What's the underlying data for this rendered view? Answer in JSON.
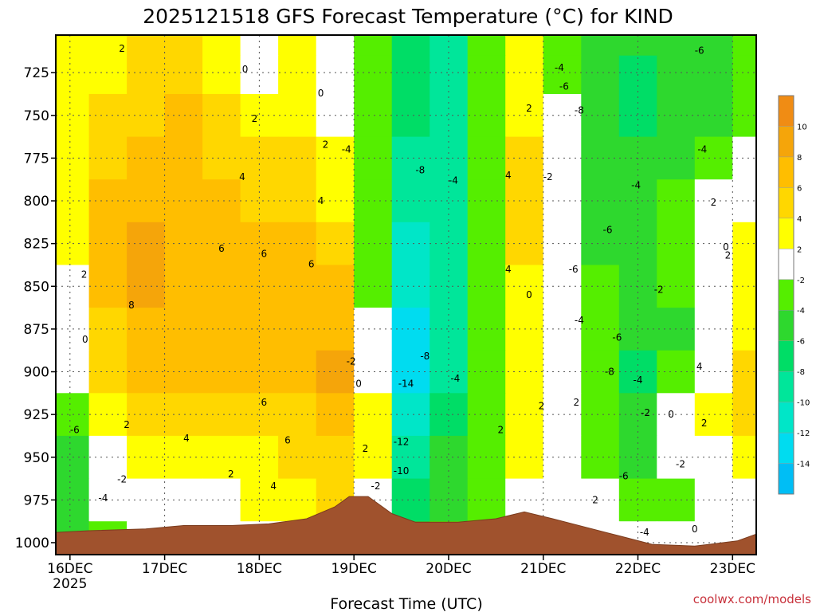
{
  "chart_data": {
    "type": "heatmap",
    "title": "2025121518 GFS Forecast Temperature (°C) for KIND",
    "xlabel": "Forecast Time (UTC)",
    "ylabel": "",
    "credit": "coolwx.com/models",
    "x_ticks": [
      {
        "label": "16DEC",
        "sublabel": "2025",
        "day": 1
      },
      {
        "label": "17DEC",
        "sublabel": "",
        "day": 2
      },
      {
        "label": "18DEC",
        "sublabel": "",
        "day": 3
      },
      {
        "label": "19DEC",
        "sublabel": "",
        "day": 4
      },
      {
        "label": "20DEC",
        "sublabel": "",
        "day": 5
      },
      {
        "label": "21DEC",
        "sublabel": "",
        "day": 6
      },
      {
        "label": "22DEC",
        "sublabel": "",
        "day": 7
      },
      {
        "label": "23DEC",
        "sublabel": "",
        "day": 8
      }
    ],
    "xlim_days": [
      0.85,
      8.25
    ],
    "y_ticks": [
      "725",
      "750",
      "775",
      "800",
      "825",
      "850",
      "875",
      "900",
      "925",
      "950",
      "975",
      "1000"
    ],
    "ylim_hpa": [
      703,
      1007
    ],
    "colorbar": {
      "labels": [
        "10",
        "8",
        "6",
        "4",
        "2",
        "-2",
        "-4",
        "-6",
        "-8",
        "-10",
        "-12",
        "-14"
      ],
      "bands": [
        {
          "min": 10,
          "max": 12,
          "color": "#f08c14"
        },
        {
          "min": 8,
          "max": 10,
          "color": "#f5a50a"
        },
        {
          "min": 6,
          "max": 8,
          "color": "#ffbe00"
        },
        {
          "min": 4,
          "max": 6,
          "color": "#ffd700"
        },
        {
          "min": 2,
          "max": 4,
          "color": "#ffff00"
        },
        {
          "min": -2,
          "max": 2,
          "color": "#ffffff"
        },
        {
          "min": -4,
          "max": -2,
          "color": "#55ee00"
        },
        {
          "min": -6,
          "max": -4,
          "color": "#2ed82e"
        },
        {
          "min": -8,
          "max": -6,
          "color": "#00dd66"
        },
        {
          "min": -10,
          "max": -8,
          "color": "#00e69a"
        },
        {
          "min": -12,
          "max": -10,
          "color": "#00e6c8"
        },
        {
          "min": -14,
          "max": -12,
          "color": "#00dcf0"
        },
        {
          "min": -16,
          "max": -14,
          "color": "#00bef5"
        }
      ]
    },
    "terrain_color": "#a0522d",
    "terrain_hpa": [
      [
        0.85,
        994
      ],
      [
        1.2,
        993
      ],
      [
        1.8,
        992
      ],
      [
        2.2,
        990
      ],
      [
        2.7,
        990
      ],
      [
        3.1,
        989
      ],
      [
        3.5,
        986
      ],
      [
        3.8,
        979
      ],
      [
        3.95,
        973
      ],
      [
        4.15,
        973
      ],
      [
        4.4,
        983
      ],
      [
        4.65,
        988
      ],
      [
        5.1,
        988
      ],
      [
        5.5,
        986
      ],
      [
        5.8,
        982
      ],
      [
        6.1,
        986
      ],
      [
        6.45,
        991
      ],
      [
        6.8,
        996
      ],
      [
        7.15,
        1001
      ],
      [
        7.6,
        1002
      ],
      [
        8.05,
        999
      ],
      [
        8.25,
        995
      ]
    ],
    "temperature_grid": {
      "days": [
        1.0,
        1.4,
        1.8,
        2.2,
        2.6,
        3.0,
        3.4,
        3.8,
        4.2,
        4.6,
        5.0,
        5.4,
        5.8,
        6.2,
        6.6,
        7.0,
        7.4,
        7.8,
        8.2
      ],
      "levels_hpa": [
        705,
        725,
        750,
        775,
        800,
        825,
        850,
        875,
        900,
        925,
        950,
        975,
        1000
      ],
      "values": [
        [
          2,
          3,
          4,
          4,
          2,
          0,
          2,
          0,
          -4,
          -8,
          -10,
          -4,
          2,
          -4,
          -6,
          -6,
          -6,
          -6,
          -4
        ],
        [
          2,
          3,
          5,
          5,
          3,
          1,
          2,
          0,
          -4,
          -8,
          -10,
          -4,
          2,
          -4,
          -6,
          -8,
          -6,
          -6,
          -4
        ],
        [
          3,
          4,
          5,
          6,
          4,
          2,
          3,
          1,
          -4,
          -8,
          -10,
          -4,
          3,
          -2,
          -6,
          -8,
          -6,
          -6,
          -4
        ],
        [
          3,
          5,
          6,
          7,
          5,
          4,
          4,
          2,
          -4,
          -9,
          -10,
          -4,
          4,
          -2,
          -6,
          -6,
          -6,
          -4,
          -2
        ],
        [
          3,
          6,
          7,
          7,
          6,
          5,
          5,
          3,
          -4,
          -10,
          -10,
          -4,
          4,
          -2,
          -6,
          -6,
          -4,
          0,
          1
        ],
        [
          2,
          7,
          8,
          7,
          6,
          6,
          6,
          5,
          -4,
          -11,
          -10,
          -4,
          4,
          0,
          -6,
          -6,
          -4,
          -2,
          2
        ],
        [
          1,
          6,
          8,
          7,
          7,
          6,
          6,
          6,
          -4,
          -12,
          -10,
          -4,
          3,
          0,
          -4,
          -6,
          -4,
          0,
          2
        ],
        [
          0,
          5,
          7,
          7,
          7,
          6,
          6,
          7,
          -2,
          -14,
          -10,
          -4,
          3,
          0,
          -4,
          -6,
          -6,
          1,
          3
        ],
        [
          -2,
          4,
          6,
          6,
          6,
          6,
          6,
          8,
          0,
          -14,
          -10,
          -4,
          2,
          0,
          -4,
          -8,
          -4,
          0,
          4
        ],
        [
          -4,
          2,
          4,
          5,
          5,
          5,
          5,
          6,
          2,
          -12,
          -8,
          -4,
          2,
          -2,
          -4,
          -6,
          -2,
          2,
          4
        ],
        [
          -6,
          0,
          2,
          3,
          3,
          3,
          4,
          5,
          2,
          -10,
          -6,
          -4,
          2,
          -2,
          -4,
          -6,
          -2,
          0,
          2
        ],
        [
          -6,
          -2,
          0,
          1,
          1,
          2,
          3,
          4,
          -2,
          -8,
          -6,
          -4,
          0,
          -2,
          -2,
          -4,
          -4,
          -2,
          0
        ],
        [
          -6,
          -4,
          -2,
          0,
          0,
          0,
          1,
          2,
          -2,
          -6,
          -4,
          -2,
          0,
          0,
          -2,
          -2,
          -2,
          0,
          0
        ]
      ]
    },
    "contour_labels": [
      {
        "text": "2",
        "day": 1.55,
        "hpa": 711
      },
      {
        "text": "0",
        "day": 2.85,
        "hpa": 723
      },
      {
        "text": "0",
        "day": 3.65,
        "hpa": 737
      },
      {
        "text": "2",
        "day": 2.95,
        "hpa": 752
      },
      {
        "text": "2",
        "day": 3.7,
        "hpa": 767
      },
      {
        "text": "-4",
        "day": 3.92,
        "hpa": 770
      },
      {
        "text": "4",
        "day": 2.82,
        "hpa": 786
      },
      {
        "text": "4",
        "day": 3.65,
        "hpa": 800
      },
      {
        "text": "-8",
        "day": 4.7,
        "hpa": 782
      },
      {
        "text": "-4",
        "day": 5.05,
        "hpa": 788
      },
      {
        "text": "4",
        "day": 5.63,
        "hpa": 785
      },
      {
        "text": "2",
        "day": 5.85,
        "hpa": 746
      },
      {
        "text": "-2",
        "day": 6.05,
        "hpa": 786
      },
      {
        "text": "-4",
        "day": 6.17,
        "hpa": 722
      },
      {
        "text": "-6",
        "day": 6.22,
        "hpa": 733
      },
      {
        "text": "-8",
        "day": 6.38,
        "hpa": 747
      },
      {
        "text": "-6",
        "day": 7.65,
        "hpa": 712
      },
      {
        "text": "-4",
        "day": 7.68,
        "hpa": 770
      },
      {
        "text": "-4",
        "day": 6.98,
        "hpa": 791
      },
      {
        "text": "2",
        "day": 7.8,
        "hpa": 801
      },
      {
        "text": "-6",
        "day": 6.68,
        "hpa": 817
      },
      {
        "text": "-6",
        "day": 6.32,
        "hpa": 840
      },
      {
        "text": "2",
        "day": 1.15,
        "hpa": 843
      },
      {
        "text": "6",
        "day": 2.6,
        "hpa": 828
      },
      {
        "text": "6",
        "day": 3.05,
        "hpa": 831
      },
      {
        "text": "6",
        "day": 3.55,
        "hpa": 837
      },
      {
        "text": "8",
        "day": 1.65,
        "hpa": 861
      },
      {
        "text": "4",
        "day": 5.63,
        "hpa": 840
      },
      {
        "text": "0",
        "day": 5.85,
        "hpa": 855
      },
      {
        "text": "-2",
        "day": 7.22,
        "hpa": 852
      },
      {
        "text": "0",
        "day": 7.93,
        "hpa": 827
      },
      {
        "text": "2",
        "day": 7.95,
        "hpa": 832
      },
      {
        "text": "0",
        "day": 1.16,
        "hpa": 881
      },
      {
        "text": "-4",
        "day": 6.38,
        "hpa": 870
      },
      {
        "text": "-6",
        "day": 6.78,
        "hpa": 880
      },
      {
        "text": "-8",
        "day": 4.75,
        "hpa": 891
      },
      {
        "text": "-2",
        "day": 3.97,
        "hpa": 894
      },
      {
        "text": "0",
        "day": 4.05,
        "hpa": 907
      },
      {
        "text": "-14",
        "day": 4.55,
        "hpa": 907
      },
      {
        "text": "-4",
        "day": 5.07,
        "hpa": 904
      },
      {
        "text": "-8",
        "day": 6.7,
        "hpa": 900
      },
      {
        "text": "-4",
        "day": 7.0,
        "hpa": 905
      },
      {
        "text": "4",
        "day": 7.65,
        "hpa": 897
      },
      {
        "text": "2",
        "day": 6.35,
        "hpa": 918
      },
      {
        "text": "2",
        "day": 5.98,
        "hpa": 920
      },
      {
        "text": "6",
        "day": 3.05,
        "hpa": 918
      },
      {
        "text": "-2",
        "day": 7.08,
        "hpa": 924
      },
      {
        "text": "0",
        "day": 7.35,
        "hpa": 925
      },
      {
        "text": "-6",
        "day": 1.05,
        "hpa": 934
      },
      {
        "text": "2",
        "day": 1.6,
        "hpa": 931
      },
      {
        "text": "4",
        "day": 2.23,
        "hpa": 939
      },
      {
        "text": "6",
        "day": 3.3,
        "hpa": 940
      },
      {
        "text": "2",
        "day": 7.7,
        "hpa": 930
      },
      {
        "text": "2",
        "day": 5.55,
        "hpa": 934
      },
      {
        "text": "2",
        "day": 4.12,
        "hpa": 945
      },
      {
        "text": "-12",
        "day": 4.5,
        "hpa": 941
      },
      {
        "text": "-2",
        "day": 7.45,
        "hpa": 954
      },
      {
        "text": "-6",
        "day": 6.85,
        "hpa": 961
      },
      {
        "text": "-10",
        "day": 4.5,
        "hpa": 958
      },
      {
        "text": "-2",
        "day": 1.55,
        "hpa": 963
      },
      {
        "text": "2",
        "day": 2.7,
        "hpa": 960
      },
      {
        "text": "4",
        "day": 3.15,
        "hpa": 967
      },
      {
        "text": "-4",
        "day": 1.35,
        "hpa": 974
      },
      {
        "text": "-2",
        "day": 4.23,
        "hpa": 967
      },
      {
        "text": "2",
        "day": 6.55,
        "hpa": 975
      },
      {
        "text": "-4",
        "day": 7.07,
        "hpa": 994
      },
      {
        "text": "0",
        "day": 7.6,
        "hpa": 992
      }
    ]
  }
}
